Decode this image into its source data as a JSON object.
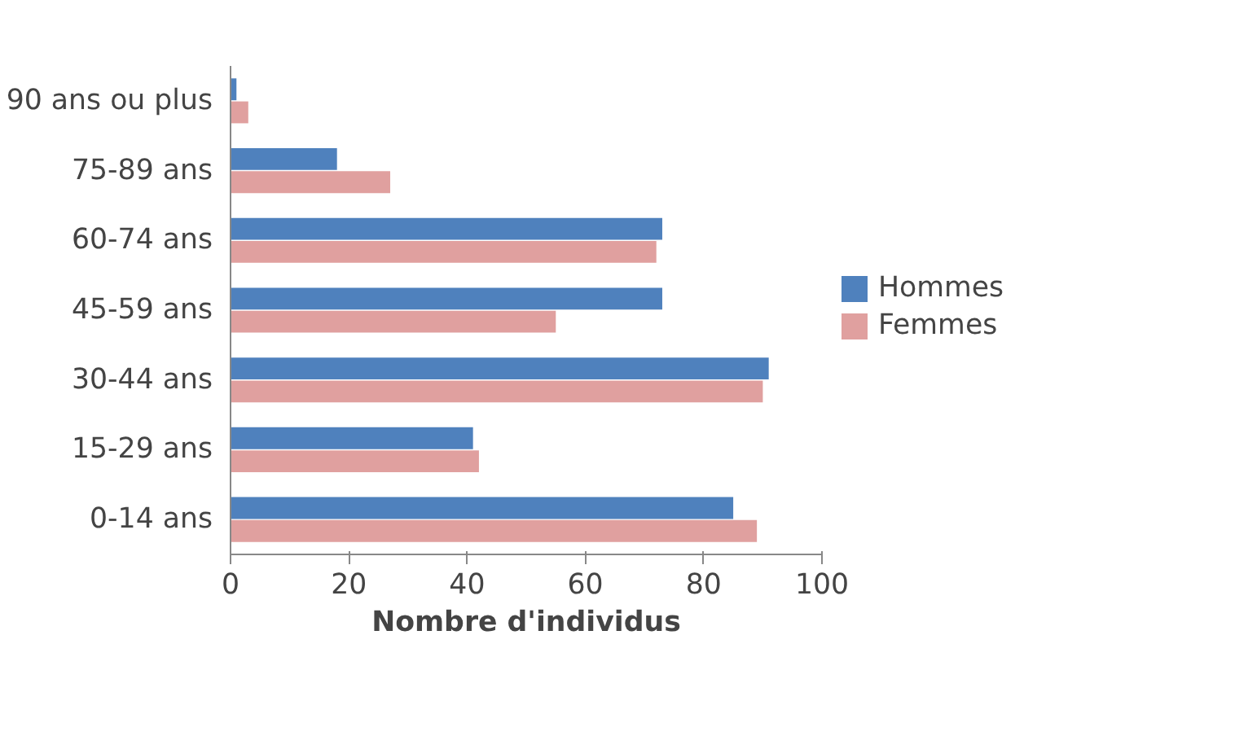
{
  "chart_data": {
    "type": "bar",
    "orientation": "horizontal",
    "xlabel": "Nombre d'individus",
    "categories": [
      "90 ans ou plus",
      "75-89 ans",
      "60-74 ans",
      "45-59 ans",
      "30-44 ans",
      "15-29 ans",
      "0-14 ans"
    ],
    "series": [
      {
        "name": "Hommes",
        "color": "#4f81bd",
        "values": [
          1,
          18,
          73,
          73,
          91,
          41,
          85
        ]
      },
      {
        "name": "Femmes",
        "color": "#e0a09f",
        "values": [
          3,
          27,
          72,
          55,
          90,
          42,
          89
        ]
      }
    ],
    "xlim": [
      0,
      100
    ],
    "xticks": [
      0,
      20,
      40,
      60,
      80,
      100
    ],
    "grid": false,
    "legend": "right"
  }
}
